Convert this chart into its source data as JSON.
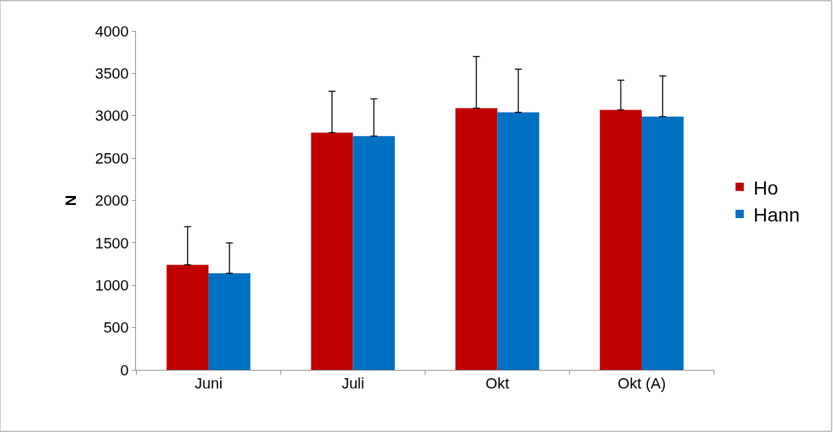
{
  "chart_data": {
    "type": "bar",
    "ylabel": "N",
    "categories": [
      "Juni",
      "Juli",
      "Okt",
      "Okt (A)"
    ],
    "series": [
      {
        "name": "Ho",
        "color": "#c00000",
        "values": [
          1240,
          2800,
          3090,
          3070
        ],
        "errors": [
          [
            1240,
            1690
          ],
          [
            2800,
            3290
          ],
          [
            3090,
            3700
          ],
          [
            3070,
            3420
          ]
        ]
      },
      {
        "name": "Hann",
        "color": "#0070c0",
        "values": [
          1140,
          2760,
          3040,
          2990
        ],
        "errors": [
          [
            1140,
            1500
          ],
          [
            2760,
            3200
          ],
          [
            3040,
            3550
          ],
          [
            2990,
            3470
          ]
        ]
      }
    ],
    "ylim": [
      0,
      4000
    ],
    "yticks": [
      0,
      500,
      1000,
      1500,
      2000,
      2500,
      3000,
      3500,
      4000
    ],
    "grid": false,
    "legend": "right"
  }
}
